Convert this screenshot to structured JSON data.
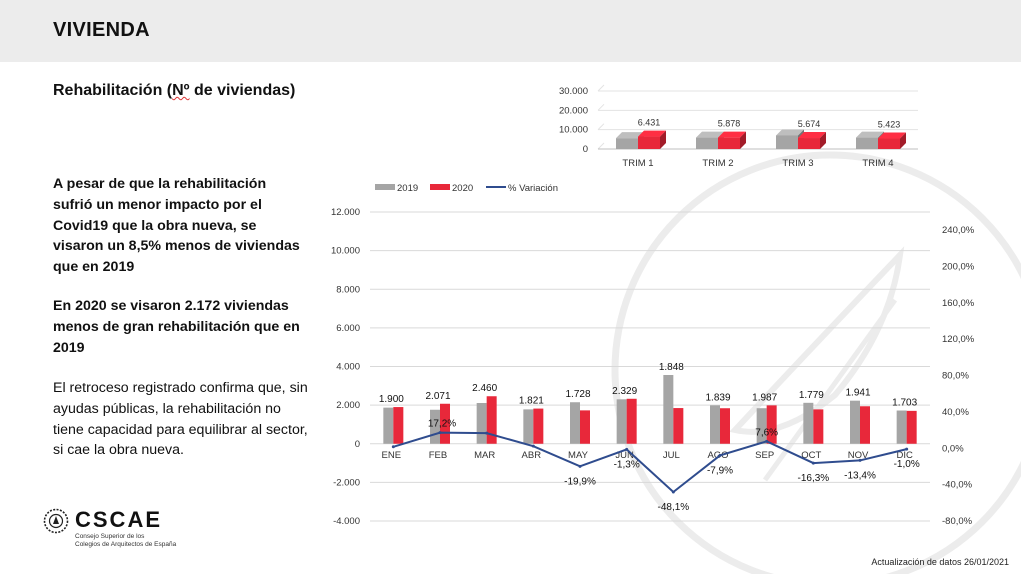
{
  "header": {
    "title": "VIVIENDA"
  },
  "section": {
    "title_prefix": "Rehabilitación (",
    "title_underlined": "Nº",
    "title_suffix": " de viviendas)"
  },
  "text": {
    "p1": "A pesar de que la rehabilitación sufrió un menor impacto por el Covid19 que la obra nueva, se visaron un 8,5% menos de viviendas que en 2019",
    "p2": "En 2020 se visaron 2.172 viviendas menos de gran rehabilitación que en 2019",
    "p3": "El retroceso registrado confirma que, sin ayudas públicas, la rehabilitación no tiene capacidad para equilibrar al sector, si cae la obra nueva."
  },
  "logo": {
    "name": "CSCAE",
    "subtitle_line1": "Consejo Superior de los",
    "subtitle_line2": "Colegios de Arquitectos de España"
  },
  "footer": {
    "update_note": "Actualización de datos 26/01/2021"
  },
  "colors": {
    "s2019": "#a5a5a5",
    "s2020": "#e8283a",
    "variation": "#2f4c8e",
    "grid": "#d9d9d9"
  },
  "chart_data": [
    {
      "type": "bar",
      "title": "",
      "categories": [
        "TRIM 1",
        "TRIM 2",
        "TRIM 3",
        "TRIM 4"
      ],
      "series": [
        {
          "name": "2019",
          "values": [
            5600,
            5900,
            7000,
            5900
          ]
        },
        {
          "name": "2020",
          "values": [
            6431,
            5878,
            5674,
            5423
          ]
        }
      ],
      "data_labels": [
        "6.431",
        "5.878",
        "5.674",
        "5.423"
      ],
      "y_ticks": [
        "30.000",
        "20.000",
        "10.000",
        "0"
      ],
      "ylim": [
        0,
        30000
      ]
    },
    {
      "type": "bar",
      "title": "",
      "categories": [
        "ENE",
        "FEB",
        "MAR",
        "ABR",
        "MAY",
        "JUN",
        "JUL",
        "AGO",
        "SEP",
        "OCT",
        "NOV",
        "DIC"
      ],
      "series": [
        {
          "name": "2019",
          "values": [
            1870,
            1760,
            2110,
            1780,
            2150,
            2300,
            3560,
            1990,
            1840,
            2120,
            2230,
            1720
          ]
        },
        {
          "name": "2020",
          "values": [
            1900,
            2071,
            2460,
            1821,
            1728,
            2329,
            1848,
            1839,
            1987,
            1779,
            1941,
            1703
          ]
        },
        {
          "name": "% Variación",
          "axis": "right",
          "values": [
            1.6,
            17.2,
            16.6,
            2.3,
            -19.9,
            -1.3,
            -48.1,
            -7.9,
            7.6,
            -16.3,
            -13.4,
            -1.0
          ]
        }
      ],
      "bar_labels": [
        "1.900",
        "2.071",
        "2.460",
        "1.821",
        "1.728",
        "2.329",
        "1.848",
        "1.839",
        "1.987",
        "1.779",
        "1.941",
        "1.703"
      ],
      "variation_labels": [
        {
          "i": 1,
          "text": "17,2%"
        },
        {
          "i": 4,
          "text": "-19,9%"
        },
        {
          "i": 5,
          "text": "-1,3%"
        },
        {
          "i": 6,
          "text": "-48,1%"
        },
        {
          "i": 7,
          "text": "-7,9%"
        },
        {
          "i": 8,
          "text": "7,6%"
        },
        {
          "i": 9,
          "text": "-16,3%"
        },
        {
          "i": 10,
          "text": "-13,4%"
        },
        {
          "i": 11,
          "text": "-1,0%"
        }
      ],
      "legend": [
        "2019",
        "2020",
        "% Variación"
      ],
      "legend_position": "top-left",
      "ylim": [
        -4000,
        12000
      ],
      "y_ticks": [
        "12.000",
        "10.000",
        "8.000",
        "6.000",
        "4.000",
        "2.000",
        "0",
        "-2.000",
        "-4.000"
      ],
      "y2lim": [
        -80,
        240
      ],
      "y2_ticks": [
        "240,0%",
        "200,0%",
        "160,0%",
        "120,0%",
        "80,0%",
        "40,0%",
        "0,0%",
        "-40,0%",
        "-80,0%"
      ],
      "grid": true
    }
  ]
}
